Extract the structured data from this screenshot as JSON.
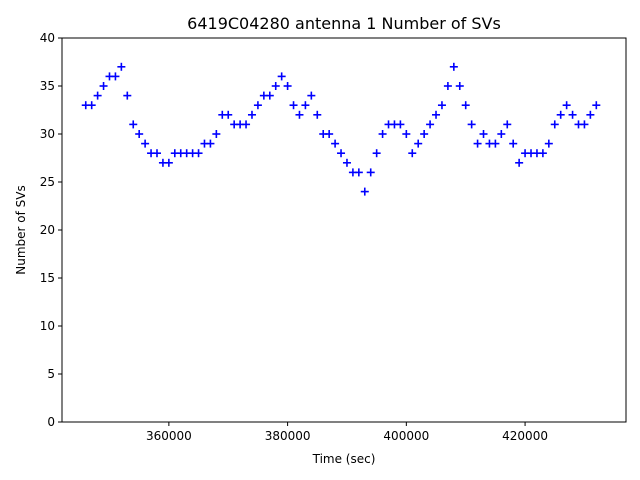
{
  "chart_data": {
    "type": "scatter",
    "title": "6419C04280 antenna 1 Number of SVs",
    "xlabel": "Time (sec)",
    "ylabel": "Number of SVs",
    "xlim": [
      342000,
      437000
    ],
    "ylim": [
      0,
      40
    ],
    "xticks": [
      360000,
      380000,
      400000,
      420000
    ],
    "xtick_labels": [
      "360000",
      "380000",
      "400000",
      "420000"
    ],
    "yticks": [
      0,
      5,
      10,
      15,
      20,
      25,
      30,
      35,
      40
    ],
    "ytick_labels": [
      "0",
      "5",
      "10",
      "15",
      "20",
      "25",
      "30",
      "35",
      "40"
    ],
    "grid": false,
    "marker": "+",
    "marker_color": "#0000ff",
    "series": [
      {
        "x": [
          346000,
          347000,
          348000,
          349000,
          350000,
          351000,
          352000,
          353000,
          354000,
          355000,
          356000,
          357000,
          358000,
          359000,
          360000,
          361000,
          362000,
          363000,
          364000,
          365000,
          366000,
          367000,
          368000,
          369000,
          370000,
          371000,
          372000,
          373000,
          374000,
          375000,
          376000,
          377000,
          378000,
          379000,
          380000,
          381000,
          382000,
          383000,
          384000,
          385000,
          386000,
          387000,
          388000,
          389000,
          390000,
          391000,
          392000,
          393000,
          394000,
          395000,
          396000,
          397000,
          398000,
          399000,
          400000,
          401000,
          402000,
          403000,
          404000,
          405000,
          406000,
          407000,
          408000,
          409000,
          410000,
          411000,
          412000,
          413000,
          414000,
          415000,
          416000,
          417000,
          418000,
          419000,
          420000,
          421000,
          422000,
          423000,
          424000,
          425000,
          426000,
          427000,
          428000,
          429000,
          430000,
          431000,
          432000
        ],
        "y": [
          33,
          33,
          34,
          35,
          36,
          36,
          37,
          34,
          31,
          30,
          29,
          28,
          28,
          27,
          27,
          28,
          28,
          28,
          28,
          28,
          29,
          29,
          30,
          32,
          32,
          31,
          31,
          31,
          32,
          33,
          34,
          34,
          35,
          36,
          35,
          33,
          32,
          33,
          34,
          32,
          30,
          30,
          29,
          28,
          27,
          26,
          26,
          24,
          26,
          28,
          30,
          31,
          31,
          31,
          30,
          28,
          29,
          30,
          31,
          32,
          33,
          35,
          37,
          35,
          33,
          31,
          29,
          30,
          29,
          29,
          30,
          31,
          29,
          27,
          28,
          28,
          28,
          28,
          29,
          31,
          32,
          33,
          32,
          31,
          31,
          32,
          33
        ]
      }
    ]
  }
}
